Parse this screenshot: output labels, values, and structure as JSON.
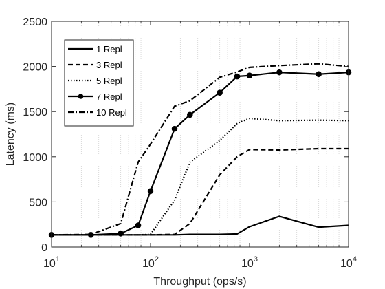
{
  "chart_data": {
    "type": "line",
    "xscale": "log",
    "xlim": [
      10,
      10000
    ],
    "ylim": [
      0,
      2500
    ],
    "xlabel": "Throughput (ops/s)",
    "ylabel": "Latency (ms)",
    "grid": "minor-x-dotted",
    "legend_position": "top-left",
    "xticks": [
      {
        "value": 10,
        "base": "10",
        "exp": "1"
      },
      {
        "value": 100,
        "base": "10",
        "exp": "2"
      },
      {
        "value": 1000,
        "base": "10",
        "exp": "3"
      },
      {
        "value": 10000,
        "base": "10",
        "exp": "4"
      }
    ],
    "yticks": [
      "0",
      "500",
      "1000",
      "1500",
      "2000",
      "2500"
    ],
    "series": [
      {
        "name": "1 Repl",
        "style": "solid",
        "marker": "none",
        "points": [
          [
            10,
            135
          ],
          [
            25,
            135
          ],
          [
            50,
            135
          ],
          [
            75,
            135
          ],
          [
            100,
            135
          ],
          [
            175,
            135
          ],
          [
            250,
            140
          ],
          [
            500,
            140
          ],
          [
            750,
            145
          ],
          [
            1000,
            225
          ],
          [
            2000,
            340
          ],
          [
            5000,
            220
          ],
          [
            10000,
            240
          ]
        ]
      },
      {
        "name": "3 Repl",
        "style": "dashed",
        "marker": "none",
        "points": [
          [
            10,
            135
          ],
          [
            25,
            135
          ],
          [
            50,
            135
          ],
          [
            75,
            135
          ],
          [
            100,
            135
          ],
          [
            175,
            140
          ],
          [
            250,
            260
          ],
          [
            500,
            800
          ],
          [
            750,
            1000
          ],
          [
            1000,
            1080
          ],
          [
            2000,
            1075
          ],
          [
            5000,
            1090
          ],
          [
            10000,
            1090
          ]
        ]
      },
      {
        "name": "5 Repl",
        "style": "dotted",
        "marker": "none",
        "points": [
          [
            10,
            135
          ],
          [
            25,
            135
          ],
          [
            50,
            135
          ],
          [
            75,
            135
          ],
          [
            100,
            140
          ],
          [
            175,
            520
          ],
          [
            250,
            940
          ],
          [
            500,
            1180
          ],
          [
            750,
            1370
          ],
          [
            1000,
            1425
          ],
          [
            2000,
            1400
          ],
          [
            5000,
            1405
          ],
          [
            10000,
            1400
          ]
        ]
      },
      {
        "name": "7 Repl",
        "style": "solid",
        "marker": "circle",
        "points": [
          [
            10,
            135
          ],
          [
            25,
            135
          ],
          [
            50,
            150
          ],
          [
            75,
            240
          ],
          [
            100,
            620
          ],
          [
            175,
            1310
          ],
          [
            250,
            1465
          ],
          [
            500,
            1710
          ],
          [
            750,
            1890
          ],
          [
            1000,
            1900
          ],
          [
            2000,
            1935
          ],
          [
            5000,
            1915
          ],
          [
            10000,
            1935
          ]
        ]
      },
      {
        "name": "10 Repl",
        "style": "dashdot",
        "marker": "none",
        "points": [
          [
            10,
            135
          ],
          [
            25,
            140
          ],
          [
            50,
            260
          ],
          [
            75,
            940
          ],
          [
            100,
            1140
          ],
          [
            175,
            1560
          ],
          [
            250,
            1620
          ],
          [
            500,
            1880
          ],
          [
            750,
            1940
          ],
          [
            1000,
            1990
          ],
          [
            2000,
            2010
          ],
          [
            5000,
            2030
          ],
          [
            10000,
            2000
          ]
        ]
      }
    ]
  }
}
